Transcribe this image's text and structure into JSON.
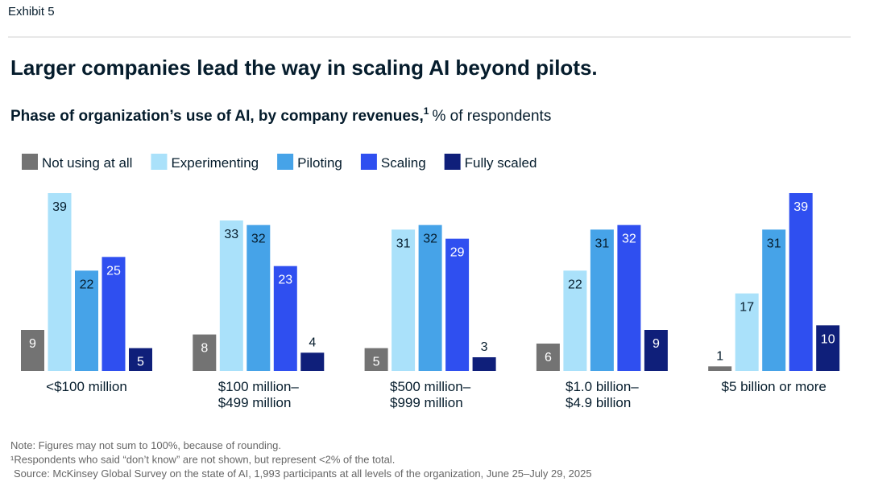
{
  "exhibit": "Exhibit 5",
  "chart_data": {
    "type": "bar",
    "title": "Larger companies lead the way in scaling AI beyond pilots.",
    "subtitle": "Phase of organization’s use of AI, by company revenues,",
    "subtitle_footnote": "1",
    "subtitle_unit": "% of respondents",
    "categories": [
      [
        "<$100 million"
      ],
      [
        "$100 million–",
        "$499 million"
      ],
      [
        "$500 million–",
        "$999 million"
      ],
      [
        "$1.0 billion–",
        "$4.9 billion"
      ],
      [
        "$5 billion or more"
      ]
    ],
    "series": [
      {
        "name": "Not using at all",
        "color": "#737373",
        "label_color": "#ffffff",
        "values": [
          9,
          8,
          5,
          6,
          1
        ]
      },
      {
        "name": "Experimenting",
        "color": "#aae1fa",
        "label_color": "#051c2c",
        "values": [
          39,
          33,
          31,
          22,
          17
        ]
      },
      {
        "name": "Piloting",
        "color": "#46a3e8",
        "label_color": "#051c2c",
        "values": [
          22,
          32,
          32,
          31,
          31
        ]
      },
      {
        "name": "Scaling",
        "color": "#2f4ff0",
        "label_color": "#ffffff",
        "values": [
          25,
          23,
          29,
          32,
          39
        ]
      },
      {
        "name": "Fully scaled",
        "color": "#0f1f7a",
        "label_color": "#ffffff",
        "values": [
          5,
          4,
          3,
          9,
          10
        ]
      }
    ],
    "notes": [
      "Note: Figures may not sum to 100%, because of rounding.",
      "¹Respondents who said “don’t know” are not shown, but represent <2% of the total.",
      "Source: McKinsey Global Survey on the state of AI, 1,993 participants at all levels of the organization, June 25–July 29, 2025"
    ]
  }
}
